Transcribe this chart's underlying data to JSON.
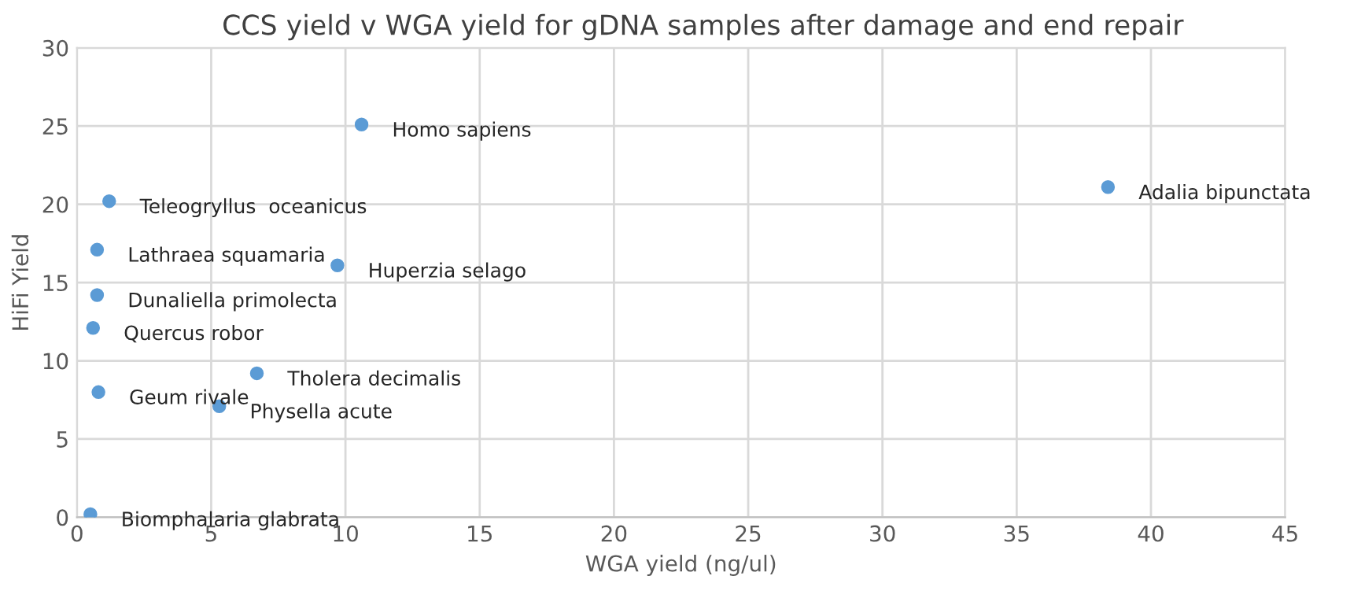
{
  "chart_data": {
    "type": "scatter",
    "title": "CCS yield v WGA yield for gDNA samples after damage and end repair",
    "xlabel": "WGA yield (ng/ul)",
    "ylabel": "HiFi Yield",
    "x": [
      10.6,
      1.2,
      0.75,
      0.75,
      0.6,
      0.8,
      5.3,
      6.7,
      9.7,
      0.5,
      38.4
    ],
    "series": [
      {
        "color": "#5b9bd5",
        "values": [
          25.1,
          20.2,
          17.1,
          14.2,
          12.1,
          8.0,
          7.1,
          9.2,
          16.1,
          0.2,
          21.1
        ]
      }
    ],
    "annotations": [
      {
        "text": "Homo sapiens",
        "x": 10.6,
        "y": 25.1
      },
      {
        "text": "Teleogryllus  oceanicus",
        "x": 1.2,
        "y": 20.2
      },
      {
        "text": "Lathraea squamaria",
        "x": 0.75,
        "y": 17.1
      },
      {
        "text": "Dunaliella primolecta",
        "x": 0.75,
        "y": 14.2
      },
      {
        "text": "Quercus robor",
        "x": 0.6,
        "y": 12.1
      },
      {
        "text": "Geum rivale",
        "x": 0.8,
        "y": 8.0
      },
      {
        "text": "Physella acute",
        "x": 5.3,
        "y": 7.1
      },
      {
        "text": "Tholera decimalis",
        "x": 6.7,
        "y": 9.2
      },
      {
        "text": "Huperzia selago",
        "x": 9.7,
        "y": 16.1
      },
      {
        "text": "Biomphalaria glabrata",
        "x": 0.5,
        "y": 0.2
      },
      {
        "text": "Adalia bipunctata",
        "x": 38.4,
        "y": 21.1
      }
    ],
    "xlim": [
      0,
      45
    ],
    "xticks": [
      0,
      5,
      10,
      15,
      20,
      25,
      30,
      35,
      40,
      45
    ],
    "ylim": [
      0,
      30
    ],
    "yticks": [
      0,
      5,
      10,
      15,
      20,
      25,
      30
    ],
    "grid": true,
    "marker": "circle"
  }
}
